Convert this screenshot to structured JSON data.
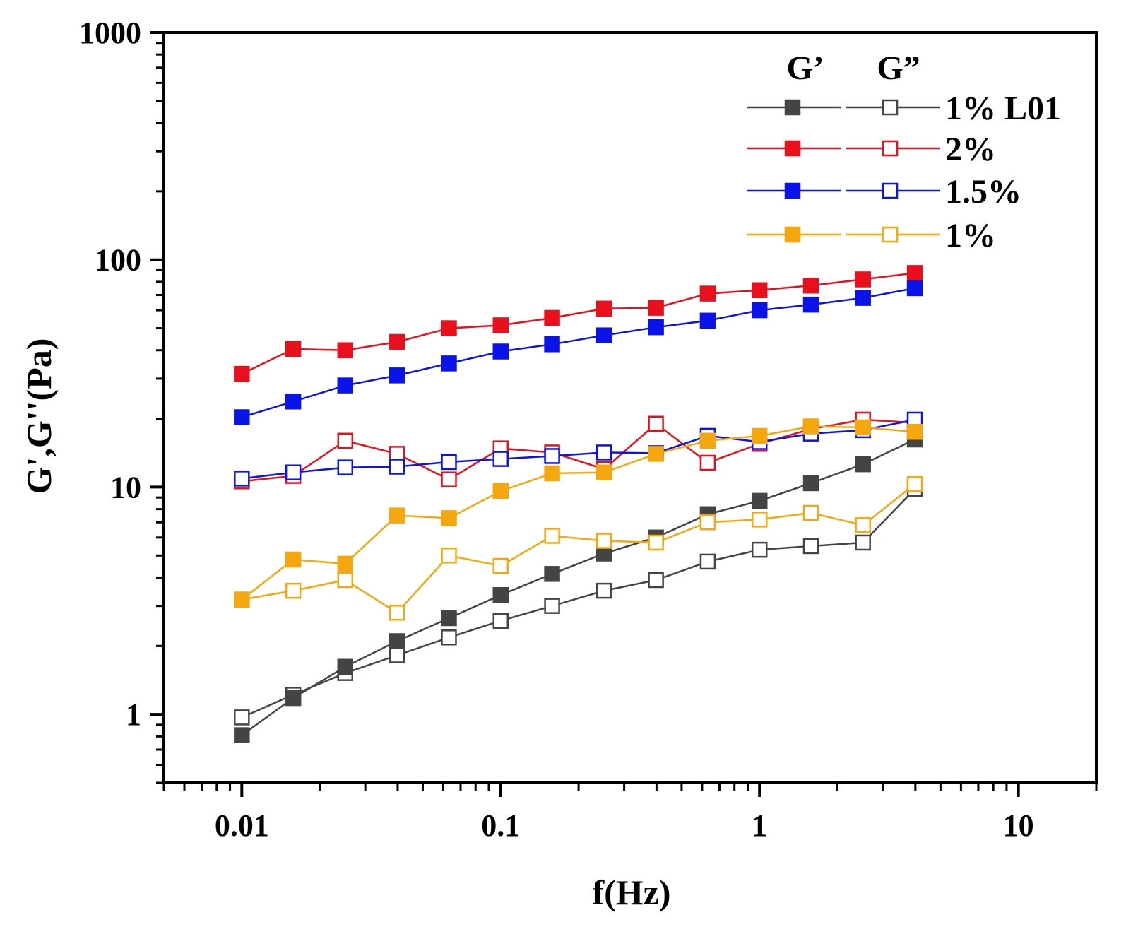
{
  "chart_data": {
    "type": "line",
    "title": "",
    "xlabel": "f(Hz)",
    "ylabel": "G',G''(Pa)",
    "xscale": "log",
    "yscale": "log",
    "xlim": [
      0.005,
      20
    ],
    "ylim": [
      0.5,
      1000
    ],
    "x_tick_labels": [
      "0.01",
      "0.1",
      "1",
      "10"
    ],
    "y_tick_labels": [
      "1",
      "10",
      "100",
      "1000"
    ],
    "x": [
      0.01,
      0.0158,
      0.0251,
      0.0398,
      0.0631,
      0.1,
      0.158,
      0.251,
      0.398,
      0.631,
      1.0,
      1.58,
      2.51,
      3.98
    ],
    "legend": {
      "position": "top-right",
      "header_storage": "G’",
      "header_loss": "G”"
    },
    "series": [
      {
        "name": "1% L01",
        "color": "#444444",
        "G_storage": [
          0.81,
          1.18,
          1.62,
          2.1,
          2.65,
          3.35,
          4.15,
          5.1,
          6.0,
          7.6,
          8.7,
          10.4,
          12.6,
          16.2
        ],
        "G_loss": [
          0.97,
          1.22,
          1.52,
          1.82,
          2.18,
          2.58,
          3.0,
          3.5,
          3.9,
          4.7,
          5.3,
          5.5,
          5.7,
          9.8
        ]
      },
      {
        "name": "2%",
        "color": "#e8101c",
        "G_storage": [
          31.5,
          40.5,
          40.0,
          43.5,
          50.0,
          51.5,
          55.5,
          61.0,
          61.5,
          71.0,
          73.5,
          77.0,
          82.0,
          87.5
        ],
        "G_loss": [
          10.6,
          11.2,
          16.0,
          14.0,
          10.8,
          14.8,
          14.2,
          12.0,
          19.0,
          12.8,
          15.5,
          18.0,
          19.8,
          19.2
        ]
      },
      {
        "name": "1.5%",
        "color": "#0a14e8",
        "G_storage": [
          20.3,
          23.8,
          28.0,
          31.0,
          35.0,
          39.5,
          42.5,
          46.5,
          50.5,
          54.0,
          60.0,
          63.5,
          68.0,
          75.0
        ],
        "G_loss": [
          10.9,
          11.6,
          12.2,
          12.3,
          12.9,
          13.3,
          13.7,
          14.2,
          14.1,
          16.8,
          15.8,
          17.2,
          17.8,
          19.8
        ]
      },
      {
        "name": "1%",
        "color": "#f5a70f",
        "G_storage": [
          3.2,
          4.8,
          4.6,
          7.5,
          7.3,
          9.6,
          11.5,
          11.6,
          14.0,
          16.0,
          16.8,
          18.5,
          18.3,
          17.5
        ],
        "G_loss": [
          3.2,
          3.5,
          3.9,
          2.8,
          5.0,
          4.5,
          6.1,
          5.8,
          5.7,
          7.0,
          7.2,
          7.7,
          6.8,
          10.3
        ]
      }
    ]
  }
}
